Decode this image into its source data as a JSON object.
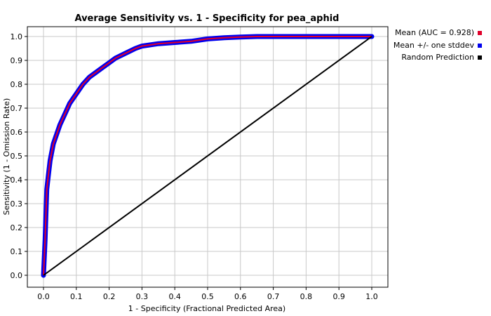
{
  "chart_data": {
    "type": "line",
    "title": "Average Sensitivity vs. 1 - Specificity for pea_aphid",
    "xlabel": "1 - Specificity (Fractional Predicted Area)",
    "ylabel": "Sensitivity (1 - Omission Rate)",
    "xlim": [
      0.0,
      1.0
    ],
    "ylim": [
      0.0,
      1.0
    ],
    "xticks": [
      "0.0",
      "0.1",
      "0.2",
      "0.3",
      "0.4",
      "0.5",
      "0.6",
      "0.7",
      "0.8",
      "0.9",
      "1.0"
    ],
    "yticks": [
      "0.0",
      "0.1",
      "0.2",
      "0.3",
      "0.4",
      "0.5",
      "0.6",
      "0.7",
      "0.8",
      "0.9",
      "1.0"
    ],
    "grid": true,
    "legend_position": "right",
    "series": [
      {
        "name": "Mean (AUC = 0.928)",
        "color": "#e0002a",
        "x": [
          0.0,
          0.005,
          0.01,
          0.015,
          0.02,
          0.03,
          0.04,
          0.05,
          0.06,
          0.07,
          0.08,
          0.09,
          0.1,
          0.12,
          0.14,
          0.16,
          0.18,
          0.2,
          0.22,
          0.25,
          0.28,
          0.3,
          0.35,
          0.4,
          0.45,
          0.5,
          0.55,
          0.6,
          0.65,
          0.7,
          0.8,
          0.9,
          1.0
        ],
        "y": [
          0.0,
          0.15,
          0.36,
          0.42,
          0.48,
          0.55,
          0.59,
          0.63,
          0.66,
          0.69,
          0.72,
          0.74,
          0.76,
          0.8,
          0.83,
          0.85,
          0.87,
          0.89,
          0.91,
          0.93,
          0.95,
          0.96,
          0.97,
          0.975,
          0.98,
          0.99,
          0.995,
          0.998,
          1.0,
          1.0,
          1.0,
          1.0,
          1.0
        ]
      },
      {
        "name": "Mean +/- one stddev",
        "color": "#0000ee",
        "band_width": 0.006
      },
      {
        "name": "Random Prediction",
        "color": "#000000",
        "x": [
          0.0,
          1.0
        ],
        "y": [
          0.0,
          1.0
        ]
      }
    ]
  }
}
